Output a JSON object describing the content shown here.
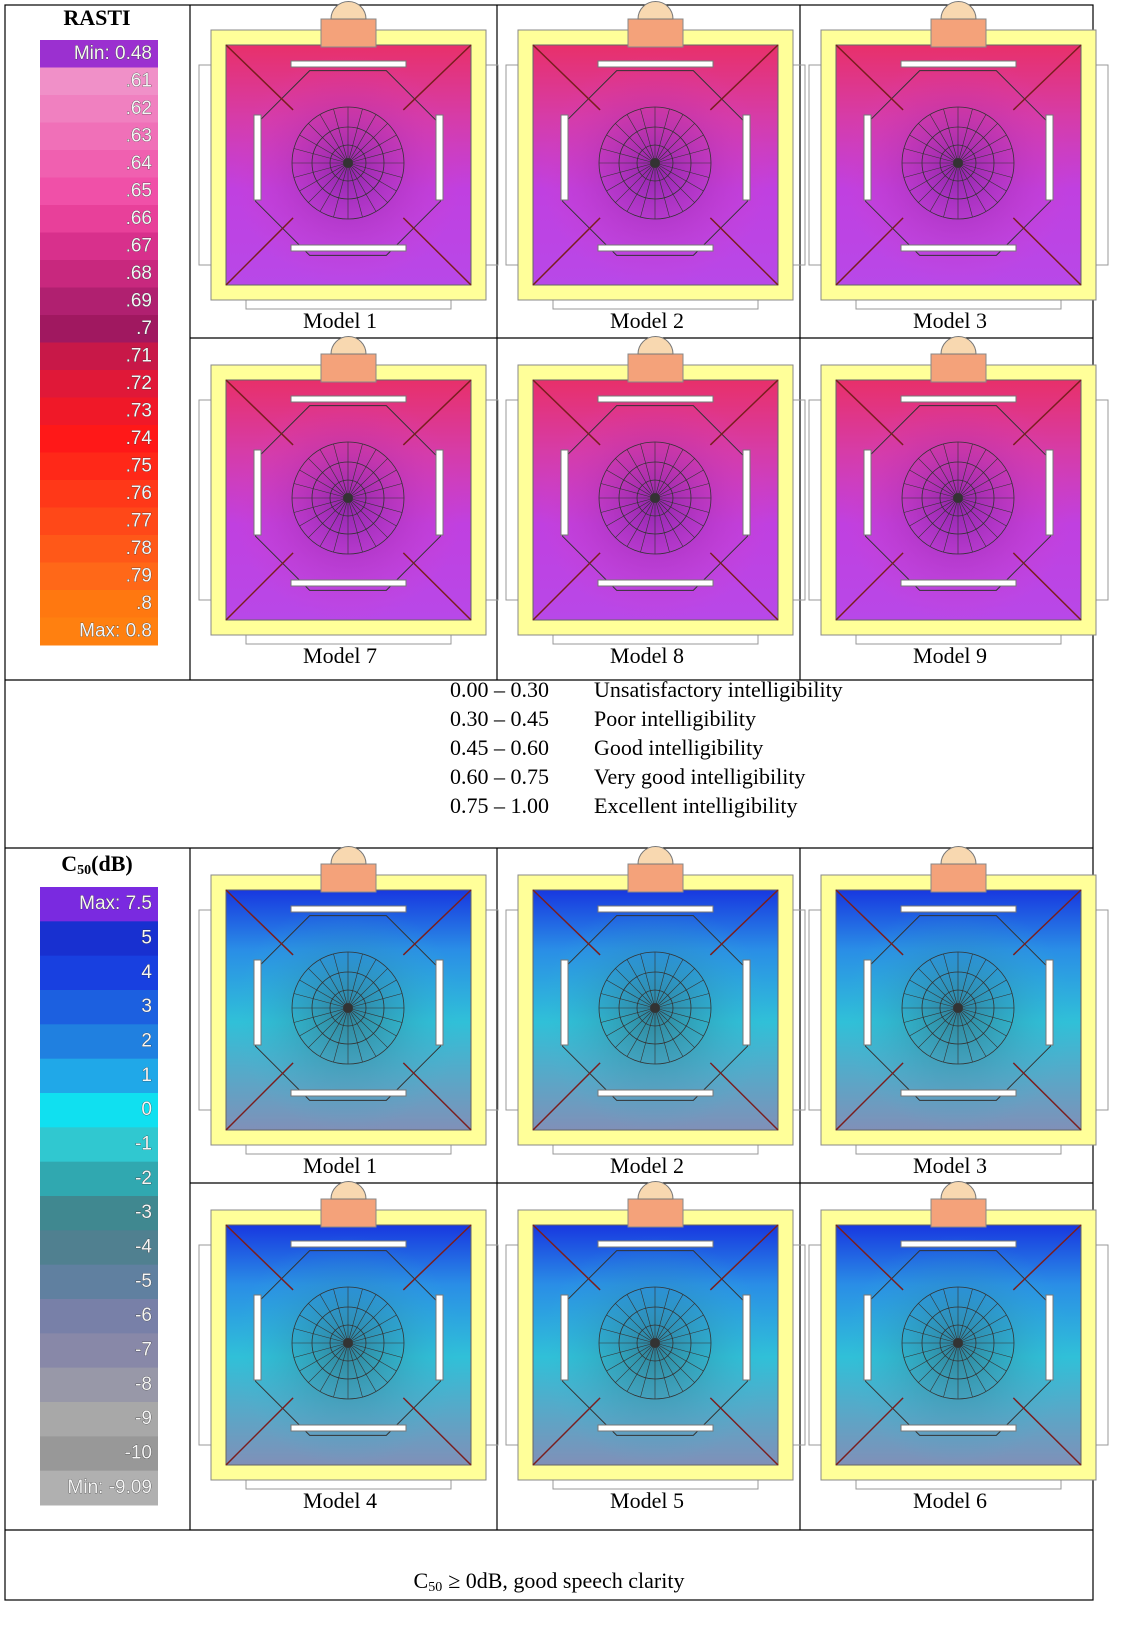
{
  "rasti": {
    "title": "RASTI",
    "scale": {
      "labels": [
        "Min: 0.48",
        ".61",
        ".62",
        ".63",
        ".64",
        ".65",
        ".66",
        ".67",
        ".68",
        ".69",
        ".7",
        ".71",
        ".72",
        ".73",
        ".74",
        ".75",
        ".76",
        ".77",
        ".78",
        ".79",
        ".8",
        "Max: 0.8"
      ],
      "colors": [
        "#9b30d0",
        "#f090c8",
        "#f080c0",
        "#f070b8",
        "#f060b0",
        "#f050a8",
        "#e8409a",
        "#d8308c",
        "#c8287e",
        "#b02070",
        "#a01860",
        "#c81848",
        "#e01838",
        "#f01828",
        "#ff1818",
        "#ff2818",
        "#ff3818",
        "#ff4818",
        "#ff5818",
        "#ff6818",
        "#ff7810",
        "#ff8010"
      ]
    },
    "models": [
      "Model 1",
      "Model 2",
      "Model 3",
      "Model 7",
      "Model 8",
      "Model 9"
    ]
  },
  "intelligibility": [
    {
      "range": "0.00 – 0.30",
      "label": "Unsatisfactory intelligibility"
    },
    {
      "range": "0.30 – 0.45",
      "label": "Poor intelligibility"
    },
    {
      "range": "0.45 – 0.60",
      "label": "Good intelligibility"
    },
    {
      "range": "0.60 – 0.75",
      "label": "Very good intelligibility"
    },
    {
      "range": "0.75 – 1.00",
      "label": "Excellent intelligibility"
    }
  ],
  "c50": {
    "title": {
      "symbol": "C",
      "subscript": "50",
      "unit": "(dB)"
    },
    "scale": {
      "labels": [
        "Max: 7.5",
        "5",
        "4",
        "3",
        "2",
        "1",
        "0",
        "-1",
        "-2",
        "-3",
        "-4",
        "-5",
        "-6",
        "-7",
        "-8",
        "-9",
        "-10",
        "Min: -9.09"
      ],
      "colors": [
        "#7a2ae0",
        "#1830d0",
        "#1840e0",
        "#1c60e0",
        "#2080e0",
        "#20a8e8",
        "#10e0f0",
        "#30c8d0",
        "#30a8b0",
        "#408890",
        "#508090",
        "#6080a0",
        "#7880a8",
        "#8888a8",
        "#9898a8",
        "#a8a8a8",
        "#989898",
        "#b0b0b0"
      ]
    },
    "models": [
      "Model 1",
      "Model 2",
      "Model 3",
      "Model 4",
      "Model 5",
      "Model 6"
    ],
    "caption": {
      "symbol": "C",
      "subscript": "50",
      "text": "≥ 0dB, good speech clarity"
    }
  }
}
